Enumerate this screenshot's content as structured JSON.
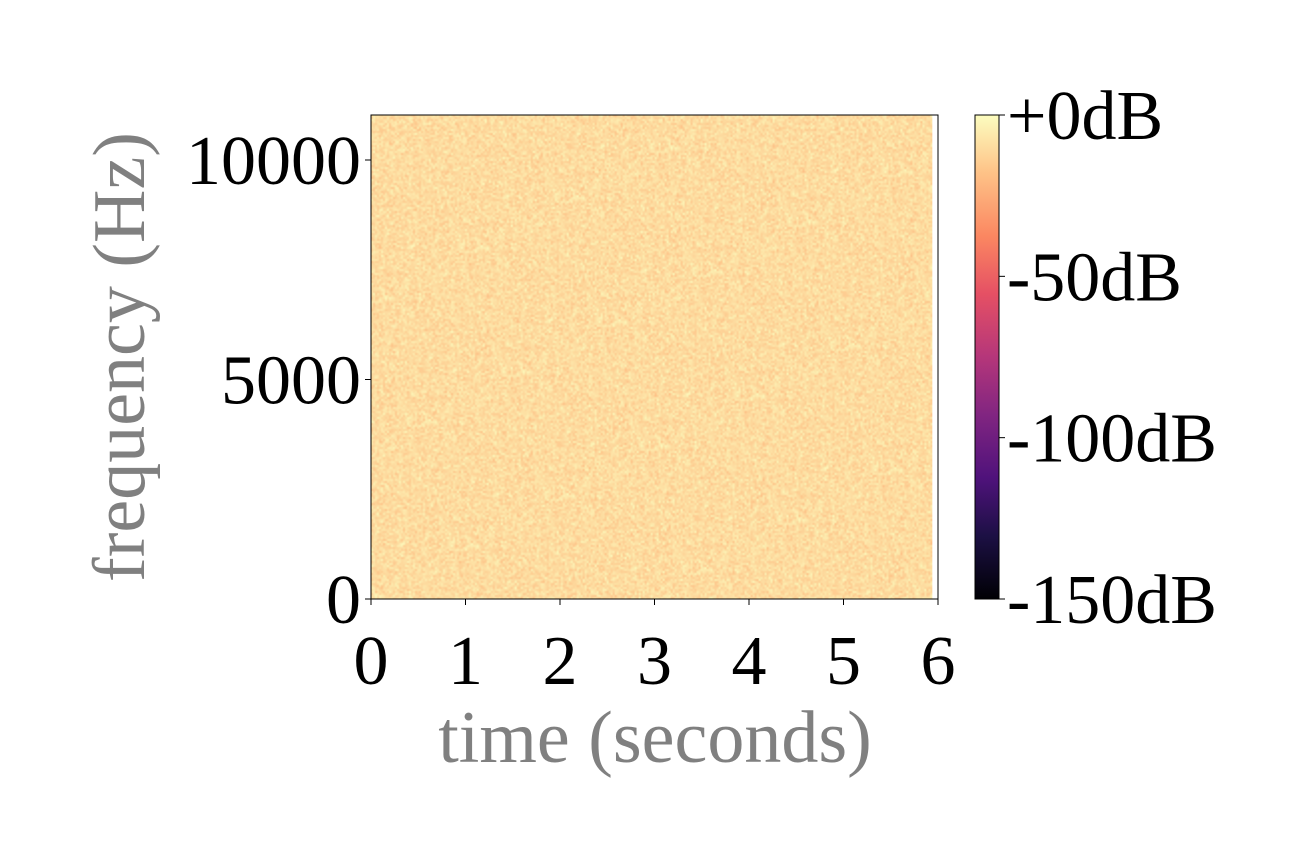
{
  "chart_data": {
    "type": "heatmap",
    "title": "",
    "xlabel": "time (seconds)",
    "ylabel": "frequency (Hz)",
    "xlim": [
      0,
      6
    ],
    "ylim": [
      0,
      11025
    ],
    "x_ticks": [
      0,
      1,
      2,
      3,
      4,
      5,
      6
    ],
    "x_tick_labels": [
      "0",
      "1",
      "2",
      "3",
      "4",
      "5",
      "6"
    ],
    "y_ticks": [
      0,
      5000,
      10000
    ],
    "y_tick_labels": [
      "0",
      "5000",
      "10000"
    ],
    "data_time_extent": [
      0,
      5.94
    ],
    "colormap": "magma",
    "colorbar": {
      "range_db": [
        -150,
        0
      ],
      "ticks": [
        0,
        -50,
        -100,
        -150
      ],
      "tick_labels": [
        "+0dB",
        "-50dB",
        "-100dB",
        "-150dB"
      ]
    },
    "values_description_db": {
      "typical_level_db": -8,
      "min_typical_db": -20,
      "max_typical_db": 0
    },
    "grid": false,
    "label_color": "#808080"
  }
}
